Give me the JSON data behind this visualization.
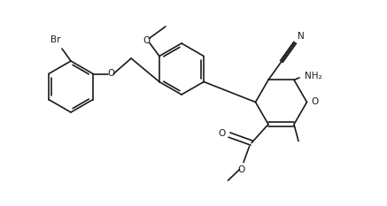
{
  "bg": "#ffffff",
  "lc": "#1a1a1a",
  "lw": 1.2,
  "fs": 7.5,
  "figw": 4.37,
  "figh": 2.33,
  "dpi": 100,
  "xlim": [
    0.0,
    8.74
  ],
  "ylim": [
    0.0,
    4.66
  ]
}
